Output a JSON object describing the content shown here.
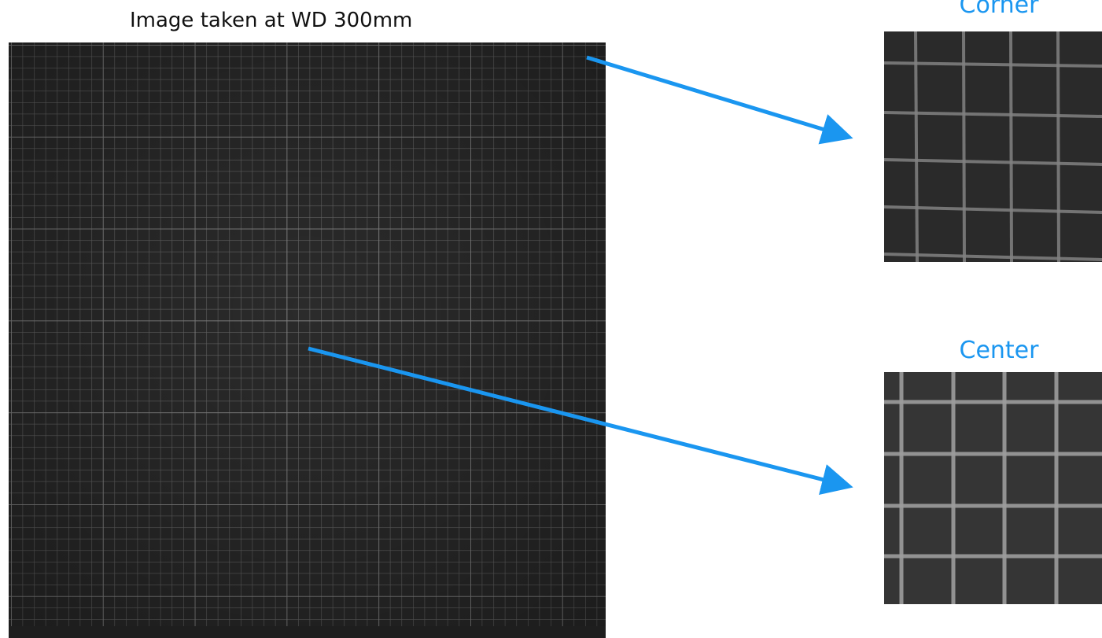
{
  "title": "Image taken at WD 300mm",
  "insets": {
    "corner_label": "Corner",
    "center_label": "Center"
  },
  "colors": {
    "accent": "#1a96f0",
    "grid_background": "#2b2b2b",
    "grid_line": "#8a8a8a",
    "title_text": "#111111"
  },
  "icons": {
    "arrow_corner": "arrow-right-icon",
    "arrow_center": "arrow-right-icon"
  }
}
